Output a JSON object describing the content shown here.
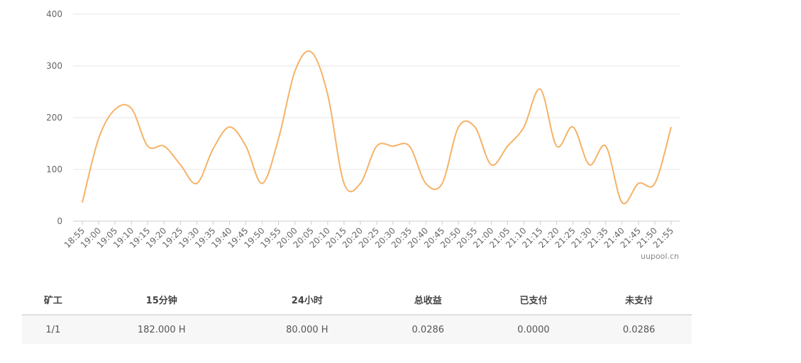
{
  "chart_data": {
    "type": "line",
    "watermark": "uupool.cn",
    "categories": [
      "18:55",
      "19:00",
      "19:05",
      "19:10",
      "19:15",
      "19:20",
      "19:25",
      "19:30",
      "19:35",
      "19:40",
      "19:45",
      "19:50",
      "19:55",
      "20:00",
      "20:05",
      "20:10",
      "20:15",
      "20:20",
      "20:25",
      "20:30",
      "20:35",
      "20:40",
      "20:45",
      "20:50",
      "20:55",
      "21:00",
      "21:05",
      "21:10",
      "21:15",
      "21:20",
      "21:25",
      "21:30",
      "21:35",
      "21:40",
      "21:45",
      "21:50",
      "21:55"
    ],
    "series": [
      {
        "color": "#f5b266",
        "values": [
          36,
          160,
          216,
          218,
          145,
          145,
          109,
          73,
          140,
          182,
          145,
          73,
          160,
          290,
          327,
          245,
          73,
          73,
          145,
          145,
          145,
          73,
          73,
          182,
          182,
          109,
          145,
          182,
          255,
          145,
          182,
          109,
          145,
          36,
          73,
          73,
          182
        ]
      }
    ],
    "ylim": [
      0,
      400
    ],
    "yticks": [
      0,
      100,
      200,
      300,
      400
    ],
    "grid": true
  },
  "table": {
    "headers": [
      "矿工",
      "15分钟",
      "24小时",
      "总收益",
      "已支付",
      "未支付"
    ],
    "rows": [
      [
        "1/1",
        "182.000 H",
        "80.000 H",
        "0.0286",
        "0.0000",
        "0.0286"
      ]
    ]
  }
}
